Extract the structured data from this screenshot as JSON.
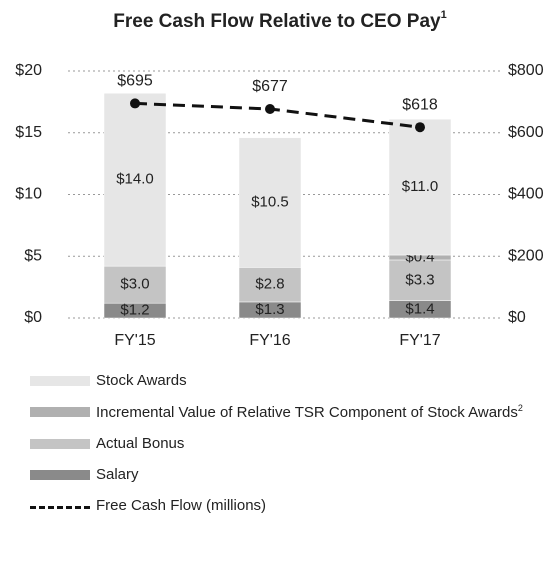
{
  "chart_data": {
    "type": "bar",
    "title": "Free Cash Flow Relative to CEO Pay",
    "title_note": "1",
    "categories": [
      "FY'15",
      "FY'16",
      "FY'17"
    ],
    "series": [
      {
        "name": "Salary",
        "color": "#8a8a8a",
        "values": [
          1.2,
          1.3,
          1.4
        ],
        "value_labels": [
          "$1.2",
          "$1.3",
          "$1.4"
        ]
      },
      {
        "name": "Actual Bonus",
        "color": "#c4c4c4",
        "values": [
          3.0,
          2.8,
          3.3
        ],
        "value_labels": [
          "$3.0",
          "$2.8",
          "$3.3"
        ]
      },
      {
        "name": "Incremental Value of Relative TSR Component of Stock Awards",
        "note": "2",
        "color": "#b0b0b0",
        "values": [
          null,
          null,
          0.4
        ],
        "value_labels": [
          null,
          null,
          "$0.4"
        ]
      },
      {
        "name": "Stock Awards",
        "color": "#e6e6e6",
        "values": [
          14.0,
          10.5,
          11.0
        ],
        "value_labels": [
          "$14.0",
          "$10.5",
          "$11.0"
        ]
      },
      {
        "name": "Free Cash Flow (millions)",
        "type": "line",
        "axis": "y2",
        "color": "#111111",
        "values": [
          695,
          677,
          618
        ],
        "value_labels": [
          "$695",
          "$677",
          "$618"
        ]
      }
    ],
    "legend_order": [
      3,
      2,
      1,
      0,
      4
    ],
    "ylim": [
      0,
      20
    ],
    "yticks": [
      {
        "value": 0,
        "label": "$0"
      },
      {
        "value": 5,
        "label": "$5"
      },
      {
        "value": 10,
        "label": "$10"
      },
      {
        "value": 15,
        "label": "$15"
      },
      {
        "value": 20,
        "label": "$20"
      }
    ],
    "y2lim": [
      0,
      800
    ],
    "y2ticks": [
      {
        "value": 0,
        "label": "$0"
      },
      {
        "value": 200,
        "label": "$200"
      },
      {
        "value": 400,
        "label": "$400"
      },
      {
        "value": 600,
        "label": "$600"
      },
      {
        "value": 800,
        "label": "$800"
      }
    ],
    "grid": true
  }
}
